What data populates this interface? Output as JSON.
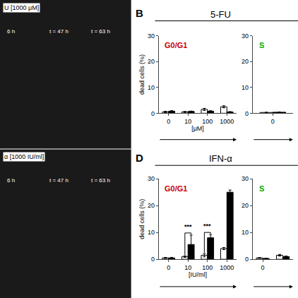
{
  "chart_data": [
    {
      "type": "bar",
      "panel_label": "B",
      "title": "5-FU",
      "image_label": "U [1000 μM]",
      "image_times": [
        "6 h",
        "t = 47 h",
        "t = 63 h"
      ],
      "phase_label": {
        "text": "G0/G1",
        "color": "#cc0000"
      },
      "categories": [
        "0",
        "10",
        "100",
        "1000"
      ],
      "xlabel": "[μM]",
      "ylabel": "dead cells (%)",
      "series": [
        {
          "color": "white",
          "values": [
            0.5,
            0.5,
            1.5,
            2.5
          ],
          "errors": [
            0.25,
            0.2,
            0.4,
            0.4
          ]
        },
        {
          "color": "black",
          "values": [
            0.8,
            0.7,
            0.8,
            0.5
          ],
          "errors": [
            0.2,
            0.15,
            0.2,
            0.15
          ]
        }
      ],
      "ylim": [
        0,
        30
      ],
      "yticks": [
        0,
        10,
        20,
        30
      ],
      "grid": false,
      "annotations": []
    },
    {
      "type": "bar",
      "phase_label": {
        "text": "S",
        "color": "#00aa00"
      },
      "categories": [
        "0"
      ],
      "series": [
        {
          "color": "white",
          "values": [
            0.3
          ],
          "errors": [
            0.1
          ]
        },
        {
          "color": "black",
          "values": [
            0.4
          ],
          "errors": [
            0.1
          ]
        }
      ],
      "ylim": [
        0,
        30
      ],
      "yticks": [
        0,
        10,
        20,
        30
      ],
      "grid": false,
      "annotations": []
    },
    {
      "type": "bar",
      "panel_label": "D",
      "title": "IFN-α",
      "image_label": "α [1000 IU/ml]",
      "image_times": [
        "6 h",
        "t = 47 h",
        "t = 63 h"
      ],
      "phase_label": {
        "text": "G0/G1",
        "color": "#cc0000"
      },
      "categories": [
        "0",
        "10",
        "100",
        "1000"
      ],
      "xlabel": "[IU/ml]",
      "ylabel": "dead cells (%)",
      "series": [
        {
          "color": "white",
          "values": [
            0.5,
            1.0,
            1.5,
            4.0
          ],
          "errors": [
            0.2,
            0.3,
            0.6,
            0.4
          ]
        },
        {
          "color": "black",
          "values": [
            0.5,
            5.5,
            8.0,
            25.0
          ],
          "errors": [
            0.2,
            3.5,
            1.2,
            0.8
          ]
        }
      ],
      "ylim": [
        0,
        30
      ],
      "yticks": [
        0,
        10,
        20,
        30
      ],
      "grid": false,
      "annotations": [
        {
          "x": 1,
          "text": "***"
        },
        {
          "x": 2,
          "text": "***"
        }
      ]
    },
    {
      "type": "bar",
      "phase_label": {
        "text": "S",
        "color": "#00aa00"
      },
      "categories": [
        "0",
        null
      ],
      "series": [
        {
          "color": "white",
          "values": [
            0.5,
            1.5
          ],
          "errors": [
            0.15,
            0.3
          ]
        },
        {
          "color": "black",
          "values": [
            0.3,
            1.0
          ],
          "errors": [
            0.1,
            0.2
          ]
        }
      ],
      "ylim": [
        0,
        30
      ],
      "yticks": [
        0,
        10,
        20,
        30
      ],
      "grid": false,
      "annotations": []
    }
  ]
}
